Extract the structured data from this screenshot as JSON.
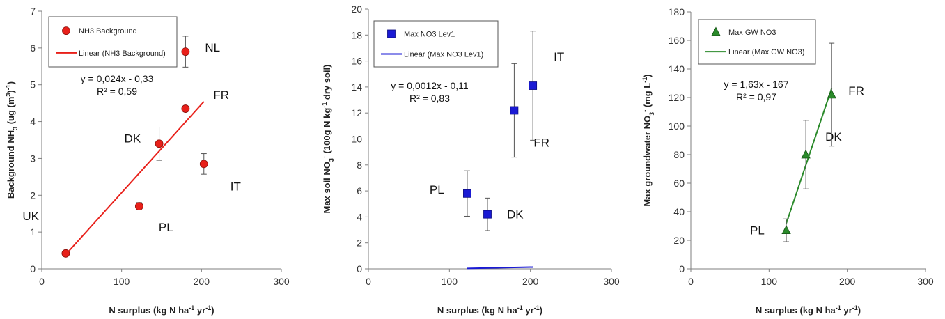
{
  "chart_data": [
    {
      "type": "scatter",
      "title": "",
      "xlabel": "N surplus (kg N ha-1 yr-1)",
      "ylabel": "Background NH3 (ug (m3)-1)",
      "xlim": [
        0,
        300
      ],
      "ylim": [
        0,
        7
      ],
      "xticks": [
        "0",
        "100",
        "200",
        "300"
      ],
      "yticks": [
        "0",
        "1",
        "2",
        "3",
        "4",
        "5",
        "6",
        "7"
      ],
      "marker": "circle",
      "color": "#e8201a",
      "series": [
        {
          "name": "NH3 Background",
          "points": [
            {
              "label": "UK",
              "x": 30,
              "y": 0.42,
              "err": 0
            },
            {
              "label": "PL",
              "x": 122,
              "y": 1.7,
              "err": 0.1
            },
            {
              "label": "DK",
              "x": 147,
              "y": 3.4,
              "err": 0.45
            },
            {
              "label": "FR",
              "x": 180,
              "y": 4.35,
              "err": 0
            },
            {
              "label": "NL",
              "x": 180,
              "y": 5.9,
              "err": 0.42
            },
            {
              "label": "IT",
              "x": 203,
              "y": 2.85,
              "err": 0.28
            }
          ]
        }
      ],
      "trendline": {
        "name": "Linear (NH3 Background)",
        "slope": 0.024,
        "intercept": -0.33,
        "x_range": [
          30,
          203
        ]
      },
      "equation": "y = 0,024x - 0,33",
      "r2": "R² = 0,59",
      "legend_position": "top-left"
    },
    {
      "type": "scatter",
      "title": "",
      "xlabel": "N surplus (kg N ha-1 yr-1)",
      "ylabel": "Max soil NO3- (100g N kg-1 dry soil)",
      "xlim": [
        0,
        300
      ],
      "ylim": [
        0,
        20
      ],
      "xticks": [
        "0",
        "100",
        "200",
        "300"
      ],
      "yticks": [
        "0",
        "2",
        "4",
        "6",
        "8",
        "10",
        "12",
        "14",
        "16",
        "18",
        "20"
      ],
      "marker": "square",
      "color": "#1a1ad4",
      "series": [
        {
          "name": "Max NO3 Lev1",
          "points": [
            {
              "label": "PL",
              "x": 122,
              "y": 5.8,
              "err": 1.75
            },
            {
              "label": "DK",
              "x": 147,
              "y": 4.2,
              "err": 1.25
            },
            {
              "label": "FR",
              "x": 180,
              "y": 12.2,
              "err": 3.6
            },
            {
              "label": "IT",
              "x": 203,
              "y": 14.1,
              "err": 4.2
            }
          ]
        }
      ],
      "trendline": {
        "name": "Linear (Max NO3 Lev1)",
        "slope": 0.0012,
        "intercept": -0.11,
        "x_range": [
          122,
          203
        ]
      },
      "equation": "y = 0,0012x - 0,11",
      "r2": "R² = 0,83",
      "legend_position": "top-left"
    },
    {
      "type": "scatter",
      "title": "",
      "xlabel": "N surplus (kg N ha-1 yr-1)",
      "ylabel": "Max groundwater NO3- (mg L-1)",
      "xlim": [
        0,
        300
      ],
      "ylim": [
        0,
        180
      ],
      "xticks": [
        "0",
        "100",
        "200",
        "300"
      ],
      "yticks": [
        "0",
        "20",
        "40",
        "60",
        "80",
        "100",
        "120",
        "140",
        "160",
        "180"
      ],
      "marker": "triangle",
      "color": "#2a8a2a",
      "series": [
        {
          "name": "Max GW NO3",
          "points": [
            {
              "label": "PL",
              "x": 122,
              "y": 27,
              "err": 8
            },
            {
              "label": "DK",
              "x": 147,
              "y": 80,
              "err": 24
            },
            {
              "label": "FR",
              "x": 180,
              "y": 122,
              "err": 36
            }
          ]
        }
      ],
      "trendline": {
        "name": "Linear (Max GW NO3)",
        "slope": 1.63,
        "intercept": -167,
        "x_range": [
          122,
          180
        ]
      },
      "equation": "y = 1,63x - 167",
      "r2": "R² = 0,97",
      "legend_position": "top-left"
    }
  ]
}
